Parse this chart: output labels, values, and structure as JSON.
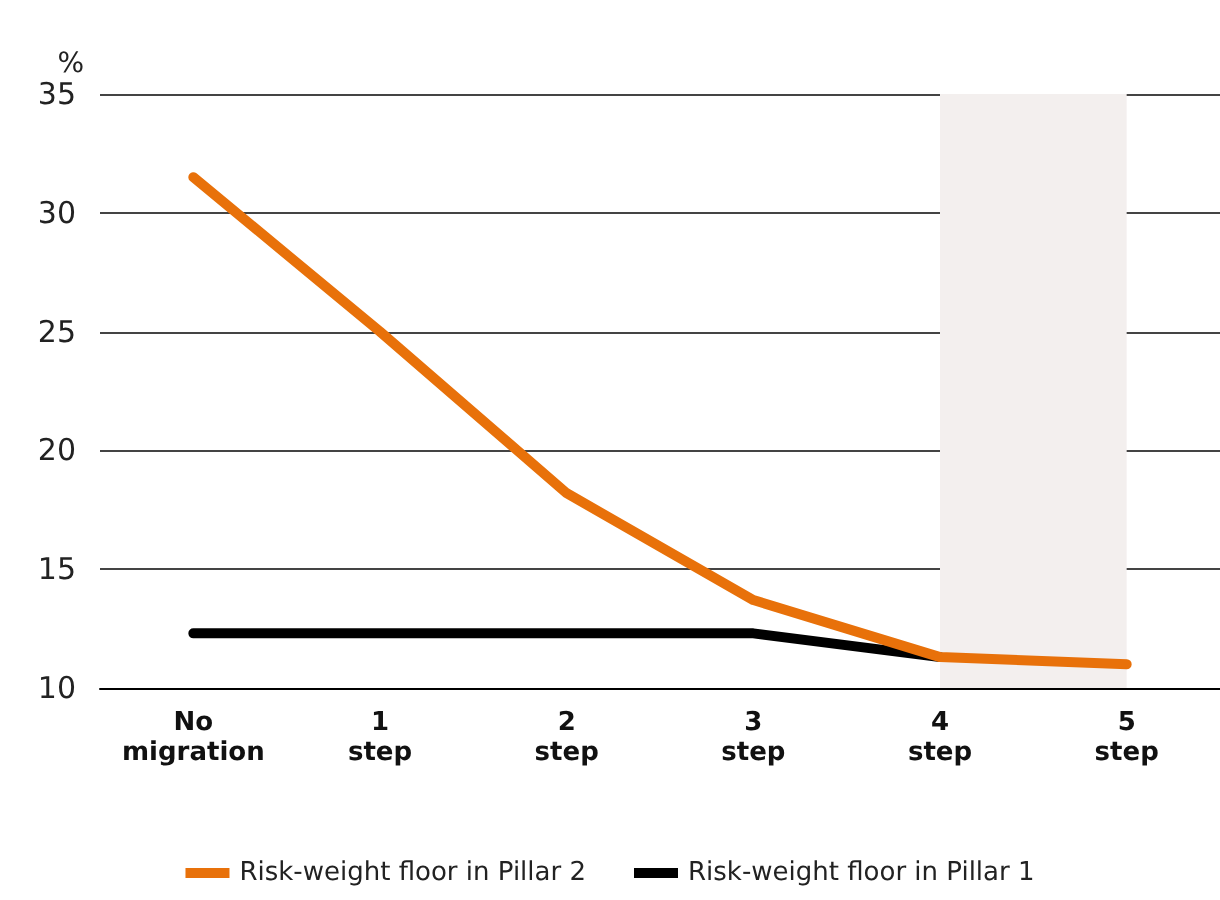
{
  "chart_data": {
    "type": "line",
    "ylabel": "%",
    "categories": [
      "No\nmigration",
      "1\nstep",
      "2\nstep",
      "3\nstep",
      "4\nstep",
      "5\nstep"
    ],
    "series": [
      {
        "name": "Risk-weight floor in Pillar 2",
        "color": "#e8710a",
        "values": [
          31.5,
          25,
          18.2,
          13.7,
          11.3,
          11.0
        ]
      },
      {
        "name": "Risk-weight floor in Pillar 1",
        "color": "#000000",
        "values": [
          12.3,
          12.3,
          12.3,
          12.3,
          11.3,
          null
        ]
      }
    ],
    "ylim": [
      10,
      35
    ],
    "yticks": [
      10,
      15,
      20,
      25,
      30,
      35
    ],
    "grid": "y",
    "legend": "bottom",
    "marker": "none",
    "line_style": "solid",
    "bands": [
      {
        "axis": "x",
        "from": "4\nstep",
        "to": "5\nstep",
        "color": "#f3efee"
      }
    ]
  }
}
